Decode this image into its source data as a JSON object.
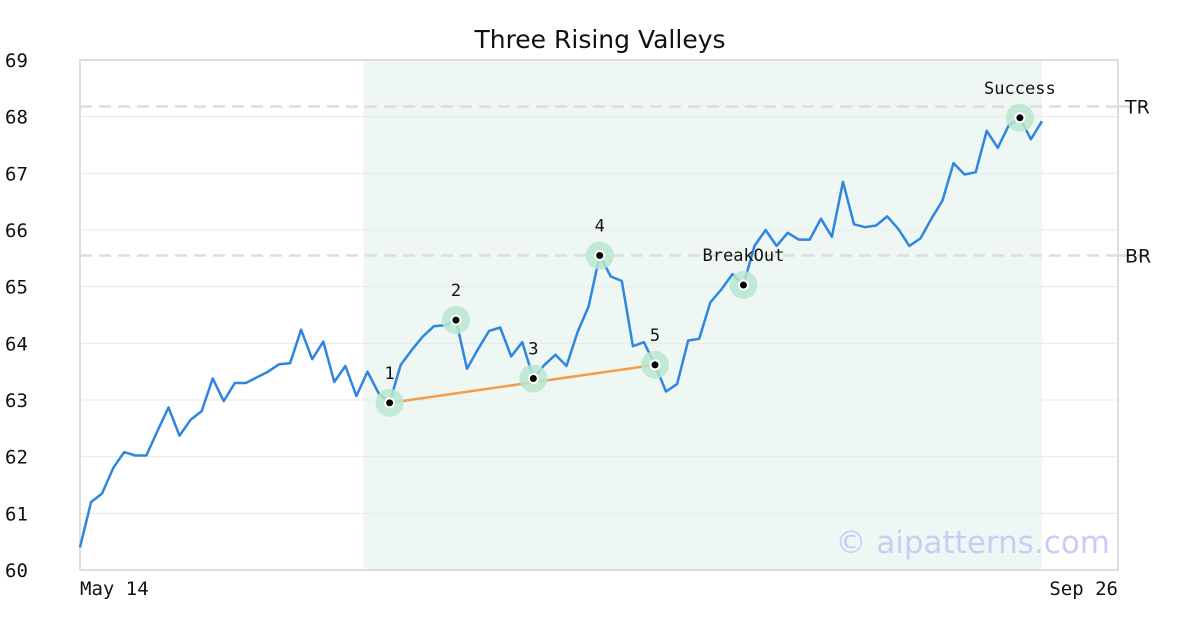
{
  "chart_data": {
    "type": "line",
    "title": "Three Rising Valleys",
    "x_start_label": "May 14",
    "x_end_label": "Sep 26",
    "ylim": [
      60,
      69
    ],
    "yticks": [
      "60",
      "61",
      "62",
      "63",
      "64",
      "65",
      "66",
      "67",
      "68",
      "69"
    ],
    "grid": true,
    "series": [
      {
        "values": [
          60.4,
          61.2,
          61.35,
          61.8,
          62.08,
          62.02,
          62.02,
          62.45,
          62.87,
          62.37,
          62.65,
          62.8,
          63.38,
          62.98,
          63.3,
          63.3,
          63.4,
          63.5,
          63.63,
          63.65,
          64.24,
          63.72,
          64.03,
          63.32,
          63.6,
          63.07,
          63.5,
          63.12,
          62.95,
          63.62,
          63.88,
          64.12,
          64.3,
          64.32,
          64.41,
          63.55,
          63.9,
          64.22,
          64.28,
          63.77,
          64.02,
          63.38,
          63.62,
          63.8,
          63.6,
          64.2,
          64.65,
          65.55,
          65.18,
          65.1,
          63.95,
          64.02,
          63.62,
          63.15,
          63.28,
          64.05,
          64.08,
          64.72,
          64.95,
          65.22,
          65.03,
          65.72,
          66.0,
          65.72,
          65.95,
          65.83,
          65.83,
          66.2,
          65.88,
          66.85,
          66.1,
          66.05,
          66.08,
          66.24,
          66.02,
          65.72,
          65.85,
          66.2,
          66.52,
          67.18,
          66.98,
          67.02,
          67.75,
          67.45,
          67.85,
          67.98,
          67.6,
          67.92
        ]
      }
    ],
    "pattern_zone": {
      "start_index": 26,
      "end_index": 87,
      "color": "#eef7f3"
    },
    "levels": [
      {
        "label": "TR",
        "value": 68.18
      },
      {
        "label": "BR",
        "value": 65.55
      }
    ],
    "points": [
      {
        "label": "1",
        "index": 28,
        "value": 62.95
      },
      {
        "label": "2",
        "index": 34,
        "value": 64.41
      },
      {
        "label": "3",
        "index": 41,
        "value": 63.38
      },
      {
        "label": "4",
        "index": 47,
        "value": 65.55
      },
      {
        "label": "5",
        "index": 52,
        "value": 63.62
      },
      {
        "label": "BreakOut",
        "index": 60,
        "value": 65.03
      },
      {
        "label": "Success",
        "index": 85,
        "value": 67.98
      }
    ],
    "trendline": {
      "from_point": 0,
      "to_point": 4
    },
    "colors": {
      "line": "#2e86de",
      "trend": "#f39c4a",
      "marker": "#b9e6cf",
      "level": "#dddddd"
    }
  },
  "watermark": "© aipatterns.com"
}
